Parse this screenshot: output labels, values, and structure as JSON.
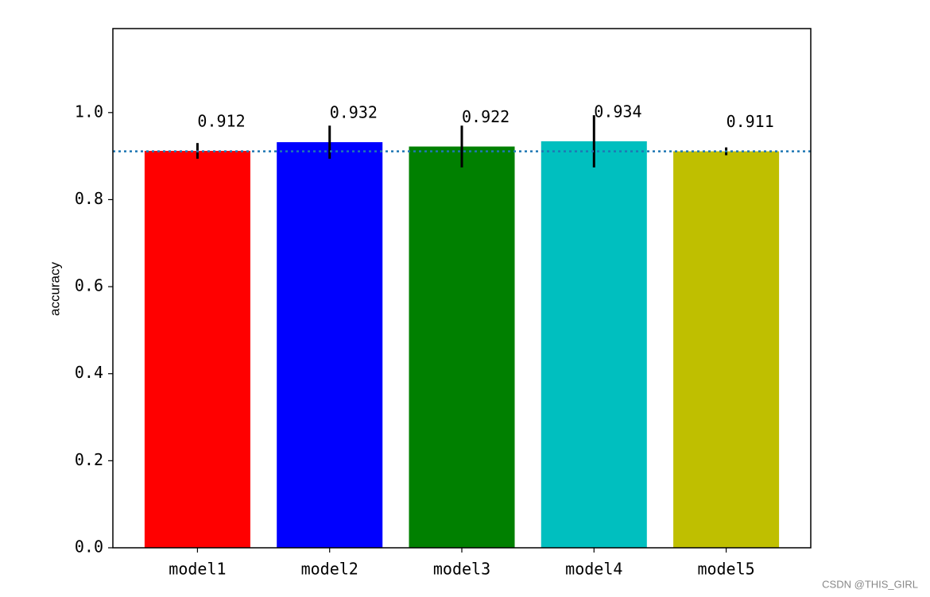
{
  "chart_data": {
    "type": "bar",
    "y_label": "accuracy",
    "categories": [
      "model1",
      "model2",
      "model3",
      "model4",
      "model5"
    ],
    "values": [
      0.912,
      0.932,
      0.922,
      0.934,
      0.911
    ],
    "errors": [
      0.018,
      0.038,
      0.048,
      0.06,
      0.009
    ],
    "colors": [
      "#ff0000",
      "#0000ff",
      "#008000",
      "#00bfbf",
      "#bfbf00"
    ],
    "reference_line": 0.911,
    "reference_color": "#1f77b4",
    "ylim": [
      0,
      1.193
    ],
    "yticks": [
      {
        "value": 0,
        "label": "0.0"
      },
      0.2,
      0.4,
      0.6,
      0.8,
      {
        "value": 1,
        "label": "1.0"
      }
    ],
    "watermark": "CSDN @THIS_GIRL"
  }
}
